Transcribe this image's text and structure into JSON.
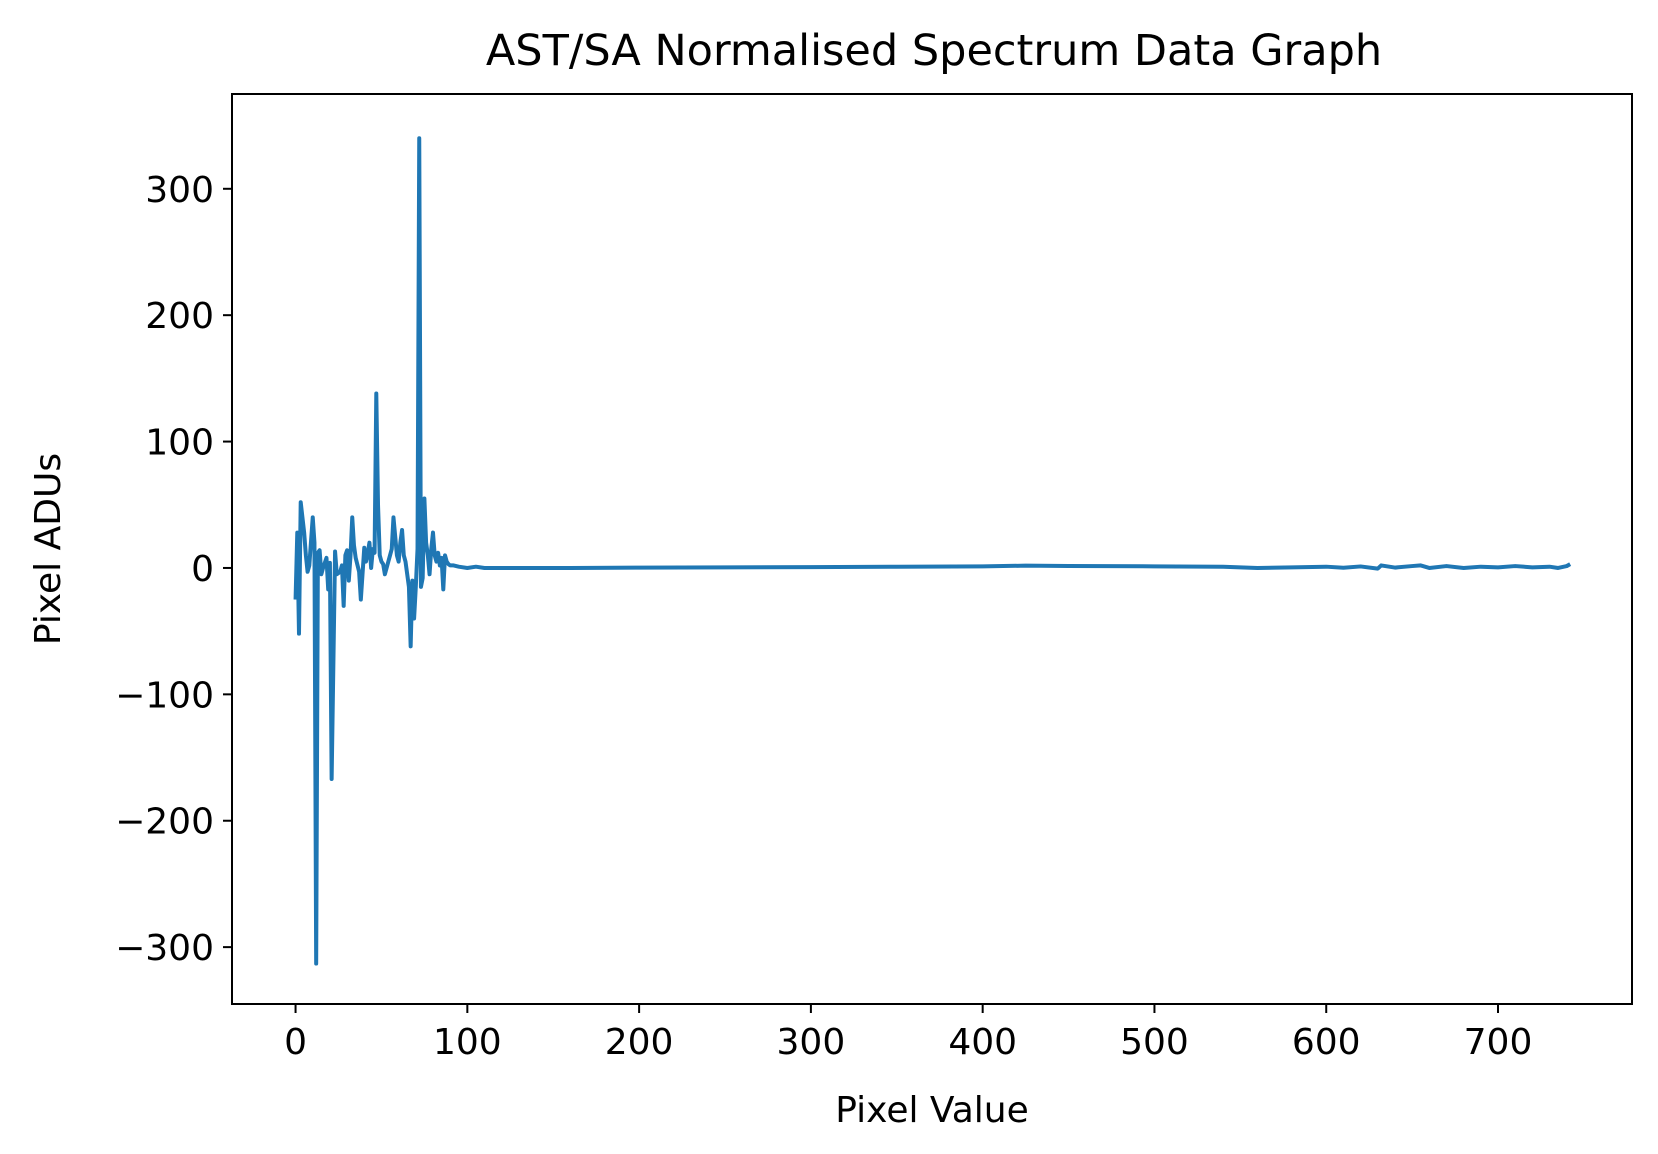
{
  "chart_data": {
    "type": "line",
    "title": "AST/SA Normalised Spectrum Data Graph",
    "xlabel": "Pixel Value",
    "ylabel": "Pixel ADUs",
    "xlim": [
      -37,
      778
    ],
    "ylim": [
      -345,
      375
    ],
    "x_ticks": [
      0,
      100,
      200,
      300,
      400,
      500,
      600,
      700
    ],
    "x_tick_labels": [
      "0",
      "100",
      "200",
      "300",
      "400",
      "500",
      "600",
      "700"
    ],
    "y_ticks": [
      -300,
      -200,
      -100,
      0,
      100,
      200,
      300
    ],
    "y_tick_labels": [
      "−300",
      "−200",
      "−100",
      "0",
      "100",
      "200",
      "300"
    ],
    "grid": false,
    "line_color": "#1f77b4",
    "series": [
      {
        "points": [
          [
            0,
            -25
          ],
          [
            1,
            28
          ],
          [
            2,
            -52
          ],
          [
            3,
            52
          ],
          [
            5,
            28
          ],
          [
            6,
            10
          ],
          [
            7,
            -3
          ],
          [
            8,
            2
          ],
          [
            10,
            40
          ],
          [
            11,
            20
          ],
          [
            12,
            -313
          ],
          [
            13,
            12
          ],
          [
            14,
            14
          ],
          [
            15,
            -5
          ],
          [
            16,
            0
          ],
          [
            18,
            8
          ],
          [
            19,
            -17
          ],
          [
            20,
            4
          ],
          [
            21,
            -167
          ],
          [
            23,
            13
          ],
          [
            24,
            -5
          ],
          [
            26,
            -3
          ],
          [
            27,
            2
          ],
          [
            28,
            -30
          ],
          [
            29,
            10
          ],
          [
            30,
            14
          ],
          [
            31,
            -10
          ],
          [
            32,
            10
          ],
          [
            33,
            40
          ],
          [
            34,
            18
          ],
          [
            35,
            8
          ],
          [
            37,
            -3
          ],
          [
            38,
            -25
          ],
          [
            40,
            16
          ],
          [
            41,
            5
          ],
          [
            42,
            12
          ],
          [
            43,
            20
          ],
          [
            44,
            0
          ],
          [
            45,
            15
          ],
          [
            46,
            12
          ],
          [
            47,
            138
          ],
          [
            48,
            50
          ],
          [
            49,
            10
          ],
          [
            50,
            5
          ],
          [
            51,
            3
          ],
          [
            52,
            -5
          ],
          [
            53,
            0
          ],
          [
            54,
            5
          ],
          [
            55,
            10
          ],
          [
            56,
            15
          ],
          [
            57,
            40
          ],
          [
            58,
            25
          ],
          [
            59,
            10
          ],
          [
            60,
            5
          ],
          [
            61,
            20
          ],
          [
            62,
            30
          ],
          [
            63,
            10
          ],
          [
            64,
            5
          ],
          [
            65,
            -5
          ],
          [
            66,
            -15
          ],
          [
            67,
            -62
          ],
          [
            68,
            -10
          ],
          [
            69,
            -40
          ],
          [
            70,
            -15
          ],
          [
            71,
            15
          ],
          [
            72,
            340
          ],
          [
            73,
            -15
          ],
          [
            74,
            -8
          ],
          [
            75,
            55
          ],
          [
            76,
            20
          ],
          [
            77,
            10
          ],
          [
            78,
            -5
          ],
          [
            79,
            15
          ],
          [
            80,
            28
          ],
          [
            81,
            10
          ],
          [
            82,
            5
          ],
          [
            83,
            12
          ],
          [
            84,
            2
          ],
          [
            85,
            8
          ],
          [
            86,
            -17
          ],
          [
            87,
            10
          ],
          [
            88,
            5
          ],
          [
            89,
            3
          ],
          [
            90,
            2
          ],
          [
            92,
            2
          ],
          [
            95,
            1
          ],
          [
            100,
            0
          ],
          [
            105,
            1
          ],
          [
            110,
            0
          ],
          [
            120,
            0
          ],
          [
            140,
            0
          ],
          [
            160,
            0
          ],
          [
            200,
            0.3
          ],
          [
            250,
            0.5
          ],
          [
            300,
            0.7
          ],
          [
            350,
            1
          ],
          [
            400,
            1.3
          ],
          [
            425,
            1.8
          ],
          [
            450,
            1.5
          ],
          [
            500,
            1.3
          ],
          [
            540,
            1
          ],
          [
            560,
            0
          ],
          [
            580,
            0.5
          ],
          [
            600,
            1
          ],
          [
            610,
            0.2
          ],
          [
            620,
            1.2
          ],
          [
            630,
            -0.5
          ],
          [
            632,
            2
          ],
          [
            640,
            0.3
          ],
          [
            650,
            1.5
          ],
          [
            655,
            2
          ],
          [
            660,
            0
          ],
          [
            670,
            1.5
          ],
          [
            680,
            0
          ],
          [
            690,
            1
          ],
          [
            700,
            0.5
          ],
          [
            710,
            1.5
          ],
          [
            720,
            0.5
          ],
          [
            730,
            1
          ],
          [
            735,
            0
          ],
          [
            740,
            1.5
          ],
          [
            742,
            3
          ]
        ]
      }
    ]
  }
}
